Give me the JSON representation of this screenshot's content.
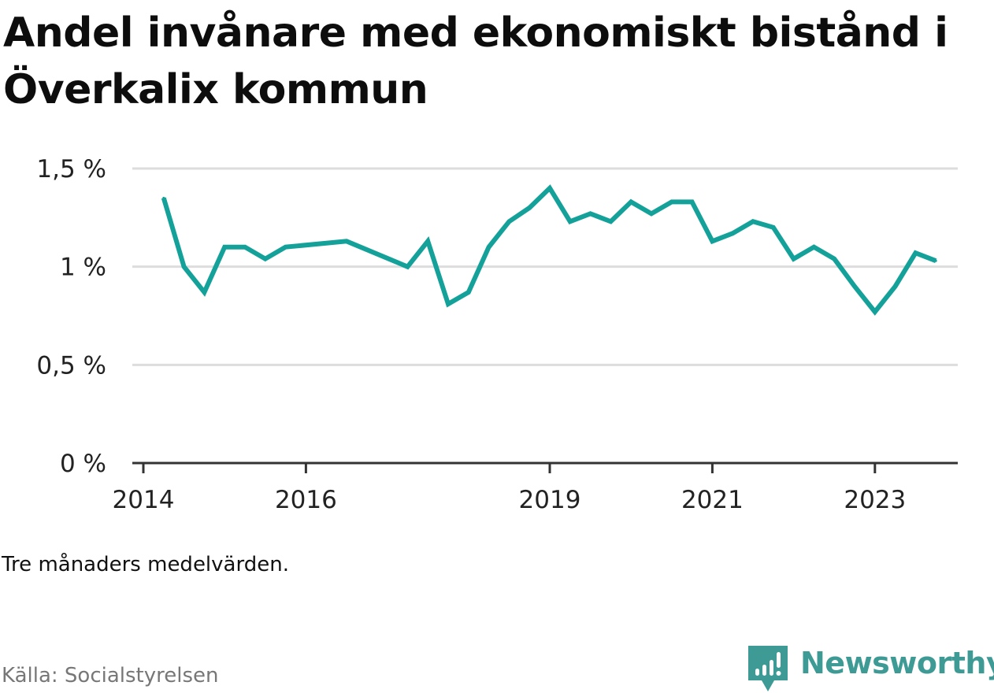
{
  "title": "Andel invånare med ekonomiskt bistånd i Överkalix kommun",
  "note": "Tre månaders medelvärden.",
  "source": "Källa: Socialstyrelsen",
  "brand": {
    "name": "Newsworthy",
    "icon": "newsworthy-bar-chart-logo-icon",
    "color": "#3d9a94"
  },
  "colors": {
    "line": "#13a19a",
    "grid": "#dddddd",
    "axis": "#333333"
  },
  "chart_data": {
    "type": "line",
    "title": "Andel invånare med ekonomiskt bistånd i Överkalix kommun",
    "xlabel": "",
    "ylabel": "",
    "ylim": [
      0,
      1.5
    ],
    "y_ticks": [
      {
        "value": 0,
        "label": "0 %"
      },
      {
        "value": 0.5,
        "label": "0,5 %"
      },
      {
        "value": 1.0,
        "label": "1 %"
      },
      {
        "value": 1.5,
        "label": "1,5 %"
      }
    ],
    "x_ticks": [
      {
        "value": "2014-01",
        "label": "2014"
      },
      {
        "value": "2016-01",
        "label": "2016"
      },
      {
        "value": "2019-01",
        "label": "2019"
      },
      {
        "value": "2021-01",
        "label": "2021"
      },
      {
        "value": "2023-01",
        "label": "2023"
      }
    ],
    "grid": true,
    "legend": "none",
    "series": [
      {
        "unit": "%",
        "points": [
          {
            "x": "2014-04",
            "y": 1.35
          },
          {
            "x": "2014-07",
            "y": 1.0
          },
          {
            "x": "2014-10",
            "y": 0.87
          },
          {
            "x": "2015-01",
            "y": 1.1
          },
          {
            "x": "2015-04",
            "y": 1.1
          },
          {
            "x": "2015-07",
            "y": 1.04
          },
          {
            "x": "2015-10",
            "y": 1.1
          },
          {
            "x": "2016-07",
            "y": 1.13
          },
          {
            "x": "2017-04",
            "y": 1.0
          },
          {
            "x": "2017-07",
            "y": 1.13
          },
          {
            "x": "2017-10",
            "y": 0.81
          },
          {
            "x": "2018-01",
            "y": 0.87
          },
          {
            "x": "2018-04",
            "y": 1.1
          },
          {
            "x": "2018-07",
            "y": 1.23
          },
          {
            "x": "2018-10",
            "y": 1.3
          },
          {
            "x": "2019-01",
            "y": 1.4
          },
          {
            "x": "2019-04",
            "y": 1.23
          },
          {
            "x": "2019-07",
            "y": 1.27
          },
          {
            "x": "2019-10",
            "y": 1.23
          },
          {
            "x": "2020-01",
            "y": 1.33
          },
          {
            "x": "2020-04",
            "y": 1.27
          },
          {
            "x": "2020-07",
            "y": 1.33
          },
          {
            "x": "2020-10",
            "y": 1.33
          },
          {
            "x": "2021-01",
            "y": 1.13
          },
          {
            "x": "2021-04",
            "y": 1.17
          },
          {
            "x": "2021-07",
            "y": 1.23
          },
          {
            "x": "2021-10",
            "y": 1.2
          },
          {
            "x": "2022-01",
            "y": 1.04
          },
          {
            "x": "2022-04",
            "y": 1.1
          },
          {
            "x": "2022-07",
            "y": 1.04
          },
          {
            "x": "2022-10",
            "y": 0.9
          },
          {
            "x": "2023-01",
            "y": 0.77
          },
          {
            "x": "2023-04",
            "y": 0.9
          },
          {
            "x": "2023-07",
            "y": 1.07
          },
          {
            "x": "2023-10",
            "y": 1.03
          }
        ]
      }
    ]
  }
}
